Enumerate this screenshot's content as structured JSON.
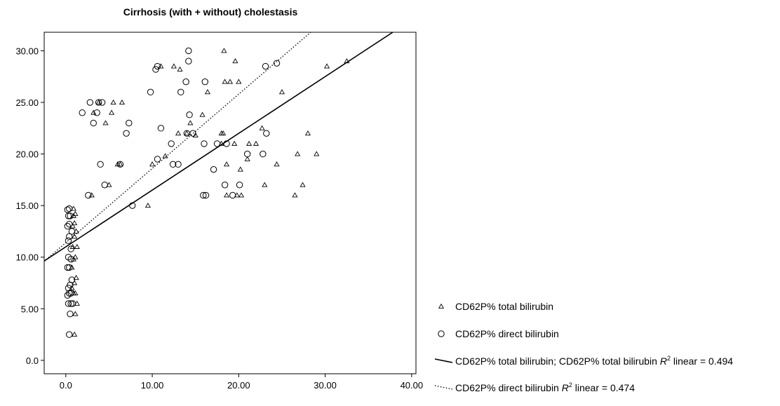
{
  "chart_data": {
    "type": "scatter",
    "title": "Cirrhosis (with + without) cholestasis",
    "xlabel": "",
    "ylabel": "",
    "xlim": [
      -2.5,
      40.5
    ],
    "ylim": [
      -1.3,
      31.8
    ],
    "x_ticks": [
      {
        "value": 0,
        "label": "0.0"
      },
      {
        "value": 10,
        "label": "10.00"
      },
      {
        "value": 20,
        "label": "20.00"
      },
      {
        "value": 30,
        "label": "30.00"
      },
      {
        "value": 40,
        "label": "40.00"
      }
    ],
    "y_ticks": [
      {
        "value": 0,
        "label": "0.0"
      },
      {
        "value": 5,
        "label": "5.00"
      },
      {
        "value": 10,
        "label": "10.00"
      },
      {
        "value": 15,
        "label": "15.00"
      },
      {
        "value": 20,
        "label": "20.00"
      },
      {
        "value": 25,
        "label": "25.00"
      },
      {
        "value": 30,
        "label": "30.00"
      }
    ],
    "grid": false,
    "legend_position": "right-bottom",
    "series": [
      {
        "name": "CD62P% total bilirubin",
        "marker": "triangle",
        "points": [
          [
            1.0,
            2.5
          ],
          [
            1.1,
            4.5
          ],
          [
            1.3,
            5.5
          ],
          [
            0.9,
            6.5
          ],
          [
            1.1,
            6.5
          ],
          [
            0.7,
            7.0
          ],
          [
            1.0,
            7.5
          ],
          [
            1.2,
            8.0
          ],
          [
            0.7,
            9.0
          ],
          [
            0.9,
            9.8
          ],
          [
            1.1,
            10.0
          ],
          [
            0.8,
            11.0
          ],
          [
            1.3,
            11.0
          ],
          [
            1.0,
            12.0
          ],
          [
            1.2,
            12.5
          ],
          [
            0.8,
            13.0
          ],
          [
            1.0,
            13.3
          ],
          [
            0.9,
            14.0
          ],
          [
            1.1,
            14.2
          ],
          [
            0.9,
            14.7
          ],
          [
            3.0,
            16.0
          ],
          [
            3.2,
            24.0
          ],
          [
            3.8,
            25.0
          ],
          [
            4.6,
            23.0
          ],
          [
            5.0,
            17.0
          ],
          [
            5.3,
            24.0
          ],
          [
            5.5,
            25.0
          ],
          [
            6.0,
            19.0
          ],
          [
            6.3,
            19.0
          ],
          [
            6.5,
            25.0
          ],
          [
            9.5,
            15.0
          ],
          [
            10.0,
            19.0
          ],
          [
            11.0,
            28.5
          ],
          [
            11.5,
            19.8
          ],
          [
            12.5,
            28.5
          ],
          [
            13.0,
            22.0
          ],
          [
            13.2,
            28.2
          ],
          [
            14.0,
            22.0
          ],
          [
            14.4,
            23.0
          ],
          [
            15.0,
            21.8
          ],
          [
            15.8,
            23.8
          ],
          [
            16.4,
            26.0
          ],
          [
            18.0,
            22.0
          ],
          [
            18.3,
            30.0
          ],
          [
            18.2,
            22.0
          ],
          [
            18.4,
            27.0
          ],
          [
            18.0,
            21.0
          ],
          [
            18.6,
            16.0
          ],
          [
            18.6,
            19.0
          ],
          [
            19.0,
            27.0
          ],
          [
            19.5,
            21.0
          ],
          [
            19.6,
            29.0
          ],
          [
            19.8,
            16.0
          ],
          [
            20.0,
            27.0
          ],
          [
            20.2,
            18.5
          ],
          [
            20.3,
            16.0
          ],
          [
            21.0,
            19.5
          ],
          [
            21.2,
            21.0
          ],
          [
            22.0,
            21.0
          ],
          [
            22.7,
            22.5
          ],
          [
            23.0,
            17.0
          ],
          [
            24.4,
            19.0
          ],
          [
            25.0,
            26.0
          ],
          [
            26.5,
            16.0
          ],
          [
            26.8,
            20.0
          ],
          [
            27.4,
            17.0
          ],
          [
            28.0,
            22.0
          ],
          [
            29.0,
            20.0
          ],
          [
            30.2,
            28.5
          ],
          [
            32.5,
            29.0
          ]
        ]
      },
      {
        "name": "CD62P% direct bilirubin",
        "marker": "circle",
        "points": [
          [
            0.4,
            2.5
          ],
          [
            0.5,
            4.5
          ],
          [
            0.3,
            5.5
          ],
          [
            0.6,
            5.5
          ],
          [
            0.8,
            5.5
          ],
          [
            0.2,
            6.3
          ],
          [
            0.4,
            6.5
          ],
          [
            0.6,
            6.5
          ],
          [
            0.3,
            7.0
          ],
          [
            0.5,
            7.3
          ],
          [
            0.7,
            7.8
          ],
          [
            0.4,
            9.0
          ],
          [
            0.2,
            9.0
          ],
          [
            0.3,
            10.0
          ],
          [
            0.6,
            9.8
          ],
          [
            0.6,
            10.8
          ],
          [
            0.3,
            11.6
          ],
          [
            0.4,
            12.0
          ],
          [
            0.7,
            12.5
          ],
          [
            0.2,
            13.0
          ],
          [
            0.4,
            13.2
          ],
          [
            0.3,
            14.0
          ],
          [
            0.5,
            14.0
          ],
          [
            0.2,
            14.6
          ],
          [
            0.4,
            14.7
          ],
          [
            1.9,
            24.0
          ],
          [
            2.6,
            16.0
          ],
          [
            2.8,
            25.0
          ],
          [
            3.2,
            23.0
          ],
          [
            3.6,
            24.0
          ],
          [
            3.8,
            25.0
          ],
          [
            4.2,
            25.0
          ],
          [
            4.0,
            19.0
          ],
          [
            4.5,
            17.0
          ],
          [
            6.3,
            19.0
          ],
          [
            7.0,
            22.0
          ],
          [
            7.3,
            23.0
          ],
          [
            7.7,
            15.0
          ],
          [
            9.8,
            26.0
          ],
          [
            10.4,
            28.2
          ],
          [
            10.6,
            28.5
          ],
          [
            10.6,
            19.5
          ],
          [
            11.0,
            22.5
          ],
          [
            12.2,
            21.0
          ],
          [
            12.4,
            19.0
          ],
          [
            13.0,
            19.0
          ],
          [
            13.3,
            26.0
          ],
          [
            13.9,
            27.0
          ],
          [
            14.2,
            30.0
          ],
          [
            14.2,
            29.0
          ],
          [
            14.3,
            23.8
          ],
          [
            14.0,
            22.0
          ],
          [
            14.7,
            22.0
          ],
          [
            15.9,
            16.0
          ],
          [
            16.2,
            16.0
          ],
          [
            16.0,
            21.0
          ],
          [
            16.1,
            27.0
          ],
          [
            17.1,
            18.5
          ],
          [
            17.5,
            21.0
          ],
          [
            18.4,
            17.0
          ],
          [
            18.6,
            21.0
          ],
          [
            19.3,
            16.0
          ],
          [
            20.1,
            17.0
          ],
          [
            21.0,
            20.0
          ],
          [
            22.8,
            20.0
          ],
          [
            23.2,
            22.0
          ],
          [
            23.1,
            28.5
          ],
          [
            24.4,
            28.8
          ]
        ]
      }
    ],
    "fit_lines": [
      {
        "name": "CD62P% total bilirubin; CD62P% total bilirubin",
        "r2_prefix": "R",
        "r2_sup": "2",
        "r2_suffix": " linear = 0.494",
        "style": "solid",
        "intercept": 11.0,
        "slope": 0.55
      },
      {
        "name": "CD62P% direct bilirubin",
        "r2_prefix": "R",
        "r2_sup": "2",
        "r2_suffix": " linear = 0.474",
        "style": "dotted",
        "intercept": 11.4,
        "slope": 0.72
      }
    ]
  }
}
